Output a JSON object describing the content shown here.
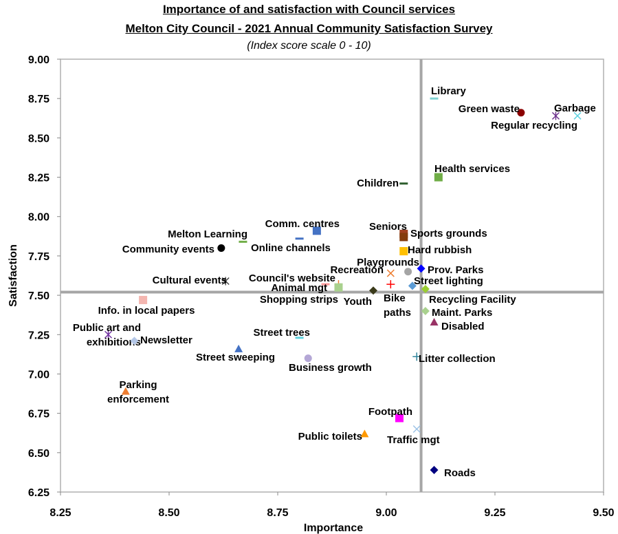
{
  "chart_data": {
    "type": "scatter",
    "title_line1": "Importance of and satisfaction with Council services",
    "title_line2": "Melton City Council - 2021 Annual Community Satisfaction Survey",
    "subtitle": "(Index score scale 0 - 10)",
    "xlabel": "Importance",
    "ylabel": "Satisfaction",
    "xlim": [
      8.25,
      9.5
    ],
    "ylim": [
      6.25,
      9.0
    ],
    "x_ticks": [
      "8.25",
      "8.50",
      "8.75",
      "9.00",
      "9.25",
      "9.50"
    ],
    "y_ticks": [
      "9.00",
      "8.75",
      "8.50",
      "8.25",
      "8.00",
      "7.75",
      "7.50",
      "7.25",
      "7.00",
      "6.75",
      "6.50",
      "6.25"
    ],
    "reference_lines": {
      "x": 9.08,
      "y": 7.52
    },
    "grid": false,
    "legend": "none",
    "points": [
      {
        "label": "Library",
        "x": 9.11,
        "y": 8.75,
        "marker": "dash",
        "color": "#7fd3d3",
        "label_lines": [
          "Library"
        ],
        "anchor": "right"
      },
      {
        "label": "Green waste",
        "x": 9.31,
        "y": 8.66,
        "marker": "circle",
        "color": "#8b0000",
        "label_lines": [
          "Green waste"
        ],
        "anchor": "left"
      },
      {
        "label": "Garbage",
        "x": 9.44,
        "y": 8.64,
        "marker": "x",
        "color": "#5fd3e0",
        "label_lines": [
          "Garbage"
        ],
        "anchor": "right"
      },
      {
        "label": "Regular recycling",
        "x": 9.39,
        "y": 8.64,
        "marker": "asterisk",
        "color": "#6b2f8b",
        "label_lines": [
          "Regular recycling"
        ],
        "anchor": "below"
      },
      {
        "label": "Health services",
        "x": 9.12,
        "y": 8.25,
        "marker": "square",
        "color": "#70ad47",
        "label_lines": [
          "Health services"
        ],
        "anchor": "right"
      },
      {
        "label": "Children",
        "x": 9.04,
        "y": 8.21,
        "marker": "dash",
        "color": "#2e5e2e",
        "label_lines": [
          "Children"
        ],
        "anchor": "left"
      },
      {
        "label": "Comm. centres",
        "x": 8.84,
        "y": 7.91,
        "marker": "square",
        "color": "#4472c4",
        "label_lines": [
          "Comm. centres"
        ],
        "anchor": "left"
      },
      {
        "label": "Melton Learning",
        "x": 8.67,
        "y": 7.84,
        "marker": "dash",
        "color": "#70ad47",
        "label_lines": [
          "Melton Learning"
        ],
        "anchor": "left"
      },
      {
        "label": "Online channels",
        "x": 8.8,
        "y": 7.86,
        "marker": "dash",
        "color": "#4472c4",
        "label_lines": [
          "Online channels"
        ],
        "anchor": "left"
      },
      {
        "label": "Community events",
        "x": 8.62,
        "y": 7.8,
        "marker": "circle",
        "color": "#000000",
        "label_lines": [
          "Community events"
        ],
        "anchor": "left"
      },
      {
        "label": "Seniors",
        "x": 9.04,
        "y": 7.89,
        "marker": "square",
        "color": "#a0401f",
        "label_lines": [
          "Seniors"
        ],
        "anchor": "left"
      },
      {
        "label": "Sports grounds",
        "x": 9.04,
        "y": 7.87,
        "marker": "square",
        "color": "#843c0c",
        "label_lines": [
          "Sports grounds"
        ],
        "anchor": "right"
      },
      {
        "label": "Hard rubbish",
        "x": 9.04,
        "y": 7.78,
        "marker": "square",
        "color": "#ffc000",
        "label_lines": [
          "Hard rubbish"
        ],
        "anchor": "right"
      },
      {
        "label": "Playgrounds",
        "x": 9.05,
        "y": 7.65,
        "marker": "circle",
        "color": "#a5a5a5",
        "label_lines": [
          "Playgrounds"
        ],
        "anchor": "left"
      },
      {
        "label": "Recreation",
        "x": 9.01,
        "y": 7.64,
        "marker": "x",
        "color": "#ed7d31",
        "label_lines": [
          "Recreation"
        ],
        "anchor": "left"
      },
      {
        "label": "Prov. Parks",
        "x": 9.08,
        "y": 7.67,
        "marker": "diamond",
        "color": "#0000ff",
        "label_lines": [
          "Prov. Parks"
        ],
        "anchor": "right"
      },
      {
        "label": "Cultural events",
        "x": 8.63,
        "y": 7.59,
        "marker": "asterisk",
        "color": "#404040",
        "label_lines": [
          "Cultural events"
        ],
        "anchor": "left"
      },
      {
        "label": "Council's website",
        "x": 8.89,
        "y": 7.57,
        "marker": "plus",
        "color": "#ed7d31",
        "label_lines": [
          "Council's website"
        ],
        "anchor": "left"
      },
      {
        "label": "Animal mgt",
        "x": 8.86,
        "y": 7.57,
        "marker": "dash",
        "color": "#ff9999",
        "label_lines": [
          "Animal mgt"
        ],
        "anchor": "left"
      },
      {
        "label": "Street lighting",
        "x": 9.06,
        "y": 7.56,
        "marker": "diamond",
        "color": "#5b9bd5",
        "label_lines": [
          "Street lighting"
        ],
        "anchor": "right"
      },
      {
        "label": "Shopping strips",
        "x": 8.89,
        "y": 7.55,
        "marker": "square",
        "color": "#a9d18e",
        "label_lines": [
          "Shopping strips"
        ],
        "anchor": "left"
      },
      {
        "label": "Bike paths",
        "x": 9.01,
        "y": 7.57,
        "marker": "plus",
        "color": "#ff0000",
        "label_lines": [
          "Bike",
          "paths"
        ],
        "anchor": "below"
      },
      {
        "label": "Youth",
        "x": 8.97,
        "y": 7.53,
        "marker": "diamond",
        "color": "#3a3a1a",
        "label_lines": [
          "Youth"
        ],
        "anchor": "left"
      },
      {
        "label": "Recycling Facility",
        "x": 9.09,
        "y": 7.54,
        "marker": "diamond",
        "color": "#9acd32",
        "label_lines": [
          "Recycling Facility"
        ],
        "anchor": "right"
      },
      {
        "label": "Info. in local papers",
        "x": 8.44,
        "y": 7.47,
        "marker": "square",
        "color": "#f4b6b0",
        "label_lines": [
          "Info. in local papers"
        ],
        "anchor": "below"
      },
      {
        "label": "Maint. Parks",
        "x": 9.09,
        "y": 7.4,
        "marker": "diamond",
        "color": "#a9d18e",
        "label_lines": [
          "Maint. Parks"
        ],
        "anchor": "right"
      },
      {
        "label": "Disabled",
        "x": 9.11,
        "y": 7.33,
        "marker": "triangle",
        "color": "#993366",
        "label_lines": [
          "Disabled"
        ],
        "anchor": "right"
      },
      {
        "label": "Public art and exhibitions",
        "x": 8.36,
        "y": 7.25,
        "marker": "asterisk",
        "color": "#7030a0",
        "label_lines": [
          "Public art and",
          "exhibitions"
        ],
        "anchor": "left"
      },
      {
        "label": "Newsletter",
        "x": 8.42,
        "y": 7.21,
        "marker": "diamond",
        "color": "#b4c7e7",
        "label_lines": [
          "Newsletter"
        ],
        "anchor": "right"
      },
      {
        "label": "Street trees",
        "x": 8.8,
        "y": 7.23,
        "marker": "dash",
        "color": "#5fd3e0",
        "label_lines": [
          "Street trees"
        ],
        "anchor": "left"
      },
      {
        "label": "Street sweeping",
        "x": 8.66,
        "y": 7.16,
        "marker": "triangle",
        "color": "#4472c4",
        "label_lines": [
          "Street sweeping"
        ],
        "anchor": "left"
      },
      {
        "label": "Business growth",
        "x": 8.82,
        "y": 7.1,
        "marker": "circle",
        "color": "#b4a7d6",
        "label_lines": [
          "Business growth"
        ],
        "anchor": "right"
      },
      {
        "label": "Litter collection",
        "x": 9.07,
        "y": 7.11,
        "marker": "plus",
        "color": "#31859c",
        "label_lines": [
          "Litter collection"
        ],
        "anchor": "right"
      },
      {
        "label": "Parking enforcement",
        "x": 8.4,
        "y": 6.89,
        "marker": "triangle",
        "color": "#ed7d31",
        "label_lines": [
          "Parking",
          "enforcement"
        ],
        "anchor": "left"
      },
      {
        "label": "Footpath",
        "x": 9.03,
        "y": 6.72,
        "marker": "square",
        "color": "#ff00ff",
        "label_lines": [
          "Footpath"
        ],
        "anchor": "left"
      },
      {
        "label": "Public toilets",
        "x": 8.95,
        "y": 6.62,
        "marker": "triangle",
        "color": "#ff9900",
        "label_lines": [
          "Public toilets"
        ],
        "anchor": "left"
      },
      {
        "label": "Traffic mgt",
        "x": 9.07,
        "y": 6.65,
        "marker": "x",
        "color": "#9dc3e6",
        "label_lines": [
          "Traffic mgt"
        ],
        "anchor": "right"
      },
      {
        "label": "Roads",
        "x": 9.11,
        "y": 6.39,
        "marker": "diamond",
        "color": "#000080",
        "label_lines": [
          "Roads"
        ],
        "anchor": "right"
      }
    ]
  }
}
